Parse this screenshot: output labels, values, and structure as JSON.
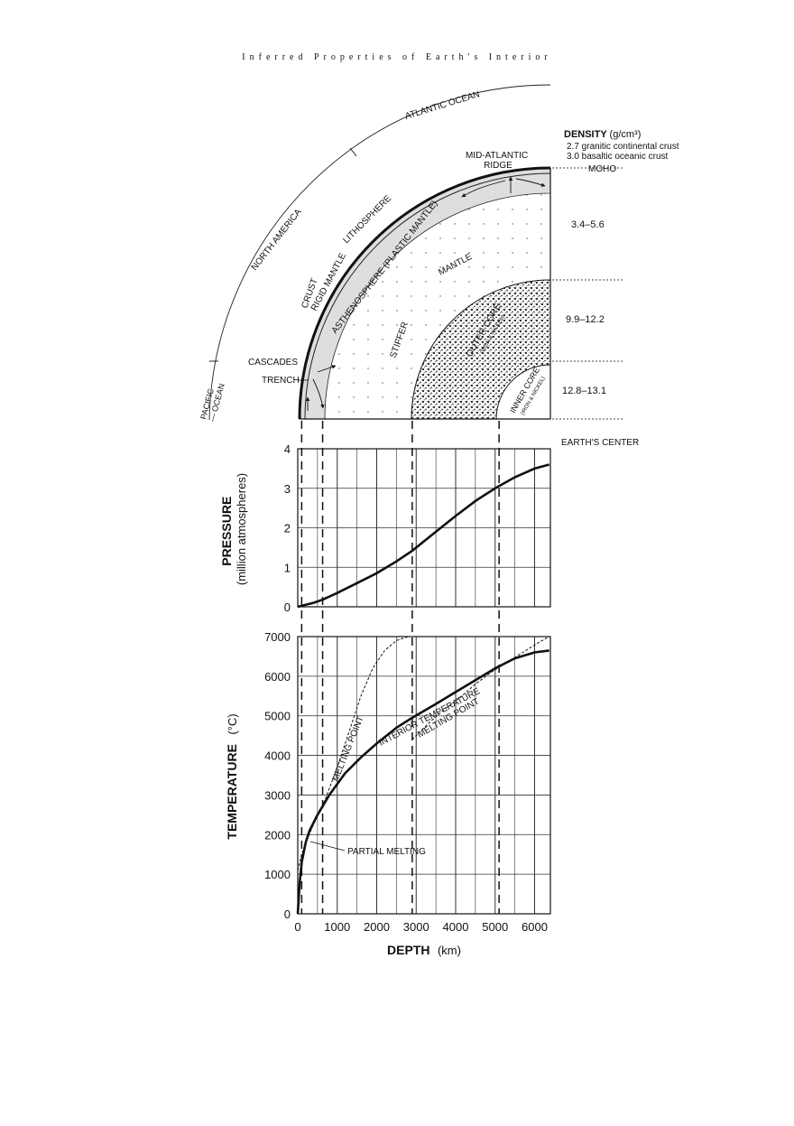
{
  "page": {
    "title": "Inferred Properties of Earth's Interior"
  },
  "diagram": {
    "labels": {
      "atlantic_ocean": "ATLANTIC OCEAN",
      "north_america": "NORTH AMERICA",
      "pacific_ocean": "PACIFIC\nOCEAN",
      "lithosphere": "LITHOSPHERE",
      "rigid_mantle": "RIGID MANTLE",
      "crust": "CRUST",
      "asthenosphere": "ASTHENOSPHERE (PLASTIC MANTLE)",
      "mantle": "MANTLE",
      "stiffer": "STIFFER",
      "outer_core": "OUTER CORE",
      "outer_core_sub": "(IRON & NICKEL)",
      "inner_core": "INNER CORE",
      "inner_core_sub": "(IRON & NICKEL)",
      "mid_atlantic_ridge": "MID-ATLANTIC\nRIDGE",
      "cascades": "CASCADES",
      "trench": "TRENCH",
      "moho": "MOHO",
      "earths_center": "EARTH'S CENTER"
    },
    "density": {
      "title": "DENSITY",
      "unit": "(g/cm³)",
      "continental": "2.7 granitic continental crust",
      "oceanic": "3.0 basaltic oceanic crust",
      "mantle": "3.4–5.6",
      "outer_core": "9.9–12.2",
      "inner_core": "12.8–13.1"
    }
  },
  "chart_data": [
    {
      "type": "line",
      "ylabel": "PRESSURE",
      "yunit": "(million atmospheres)",
      "xlim": [
        0,
        6400
      ],
      "ylim": [
        0,
        4
      ],
      "yticks": [
        0,
        1,
        2,
        3,
        4
      ],
      "grid": true,
      "boundaries_km": [
        100,
        630,
        2900,
        5100
      ],
      "series": [
        {
          "style": "solid",
          "x": [
            0,
            200,
            400,
            630,
            1000,
            1500,
            2000,
            2500,
            2900,
            3500,
            4000,
            4500,
            5000,
            5500,
            6000,
            6371
          ],
          "y": [
            0,
            0.05,
            0.1,
            0.18,
            0.35,
            0.6,
            0.85,
            1.15,
            1.42,
            1.9,
            2.3,
            2.68,
            3.0,
            3.28,
            3.5,
            3.6
          ]
        }
      ]
    },
    {
      "type": "line",
      "ylabel": "TEMPERATURE",
      "yunit": "(°C)",
      "xlabel": "DEPTH",
      "xunit": "(km)",
      "xlim": [
        0,
        6400
      ],
      "ylim": [
        0,
        7000
      ],
      "xticks": [
        0,
        1000,
        2000,
        3000,
        4000,
        5000,
        6000
      ],
      "yticks": [
        0,
        1000,
        2000,
        3000,
        4000,
        5000,
        6000,
        7000
      ],
      "grid": true,
      "annotations": {
        "interior_temperature": "INTERIOR TEMPERATURE",
        "melting_point_mantle": "MELTING POINT",
        "melting_point_core": "MELTING POINT",
        "partial_melting": "PARTIAL MELTING"
      },
      "series": [
        {
          "name": "INTERIOR TEMPERATURE",
          "style": "solid",
          "x": [
            0,
            50,
            100,
            200,
            300,
            500,
            800,
            1200,
            1600,
            2000,
            2500,
            2900,
            3500,
            4000,
            4500,
            5000,
            5500,
            6000,
            6371
          ],
          "y": [
            0,
            800,
            1300,
            1800,
            2100,
            2500,
            3000,
            3550,
            3950,
            4300,
            4700,
            4950,
            5300,
            5600,
            5900,
            6200,
            6450,
            6600,
            6650
          ]
        },
        {
          "name": "MELTING POINT",
          "style": "dashed",
          "x": [
            0,
            100,
            200,
            400,
            700,
            1000,
            1300,
            1600,
            1900,
            2200,
            2500,
            2800
          ],
          "y": [
            1100,
            1500,
            1800,
            2250,
            2900,
            3700,
            4600,
            5500,
            6200,
            6650,
            6900,
            7000
          ]
        },
        {
          "name": "MELTING POINT",
          "style": "dashed",
          "x": [
            2900,
            3300,
            3700,
            4100,
            4500,
            4900,
            5300,
            5700,
            6100,
            6371
          ],
          "y": [
            4400,
            4800,
            5150,
            5450,
            5800,
            6100,
            6350,
            6600,
            6850,
            7000
          ]
        }
      ]
    }
  ]
}
